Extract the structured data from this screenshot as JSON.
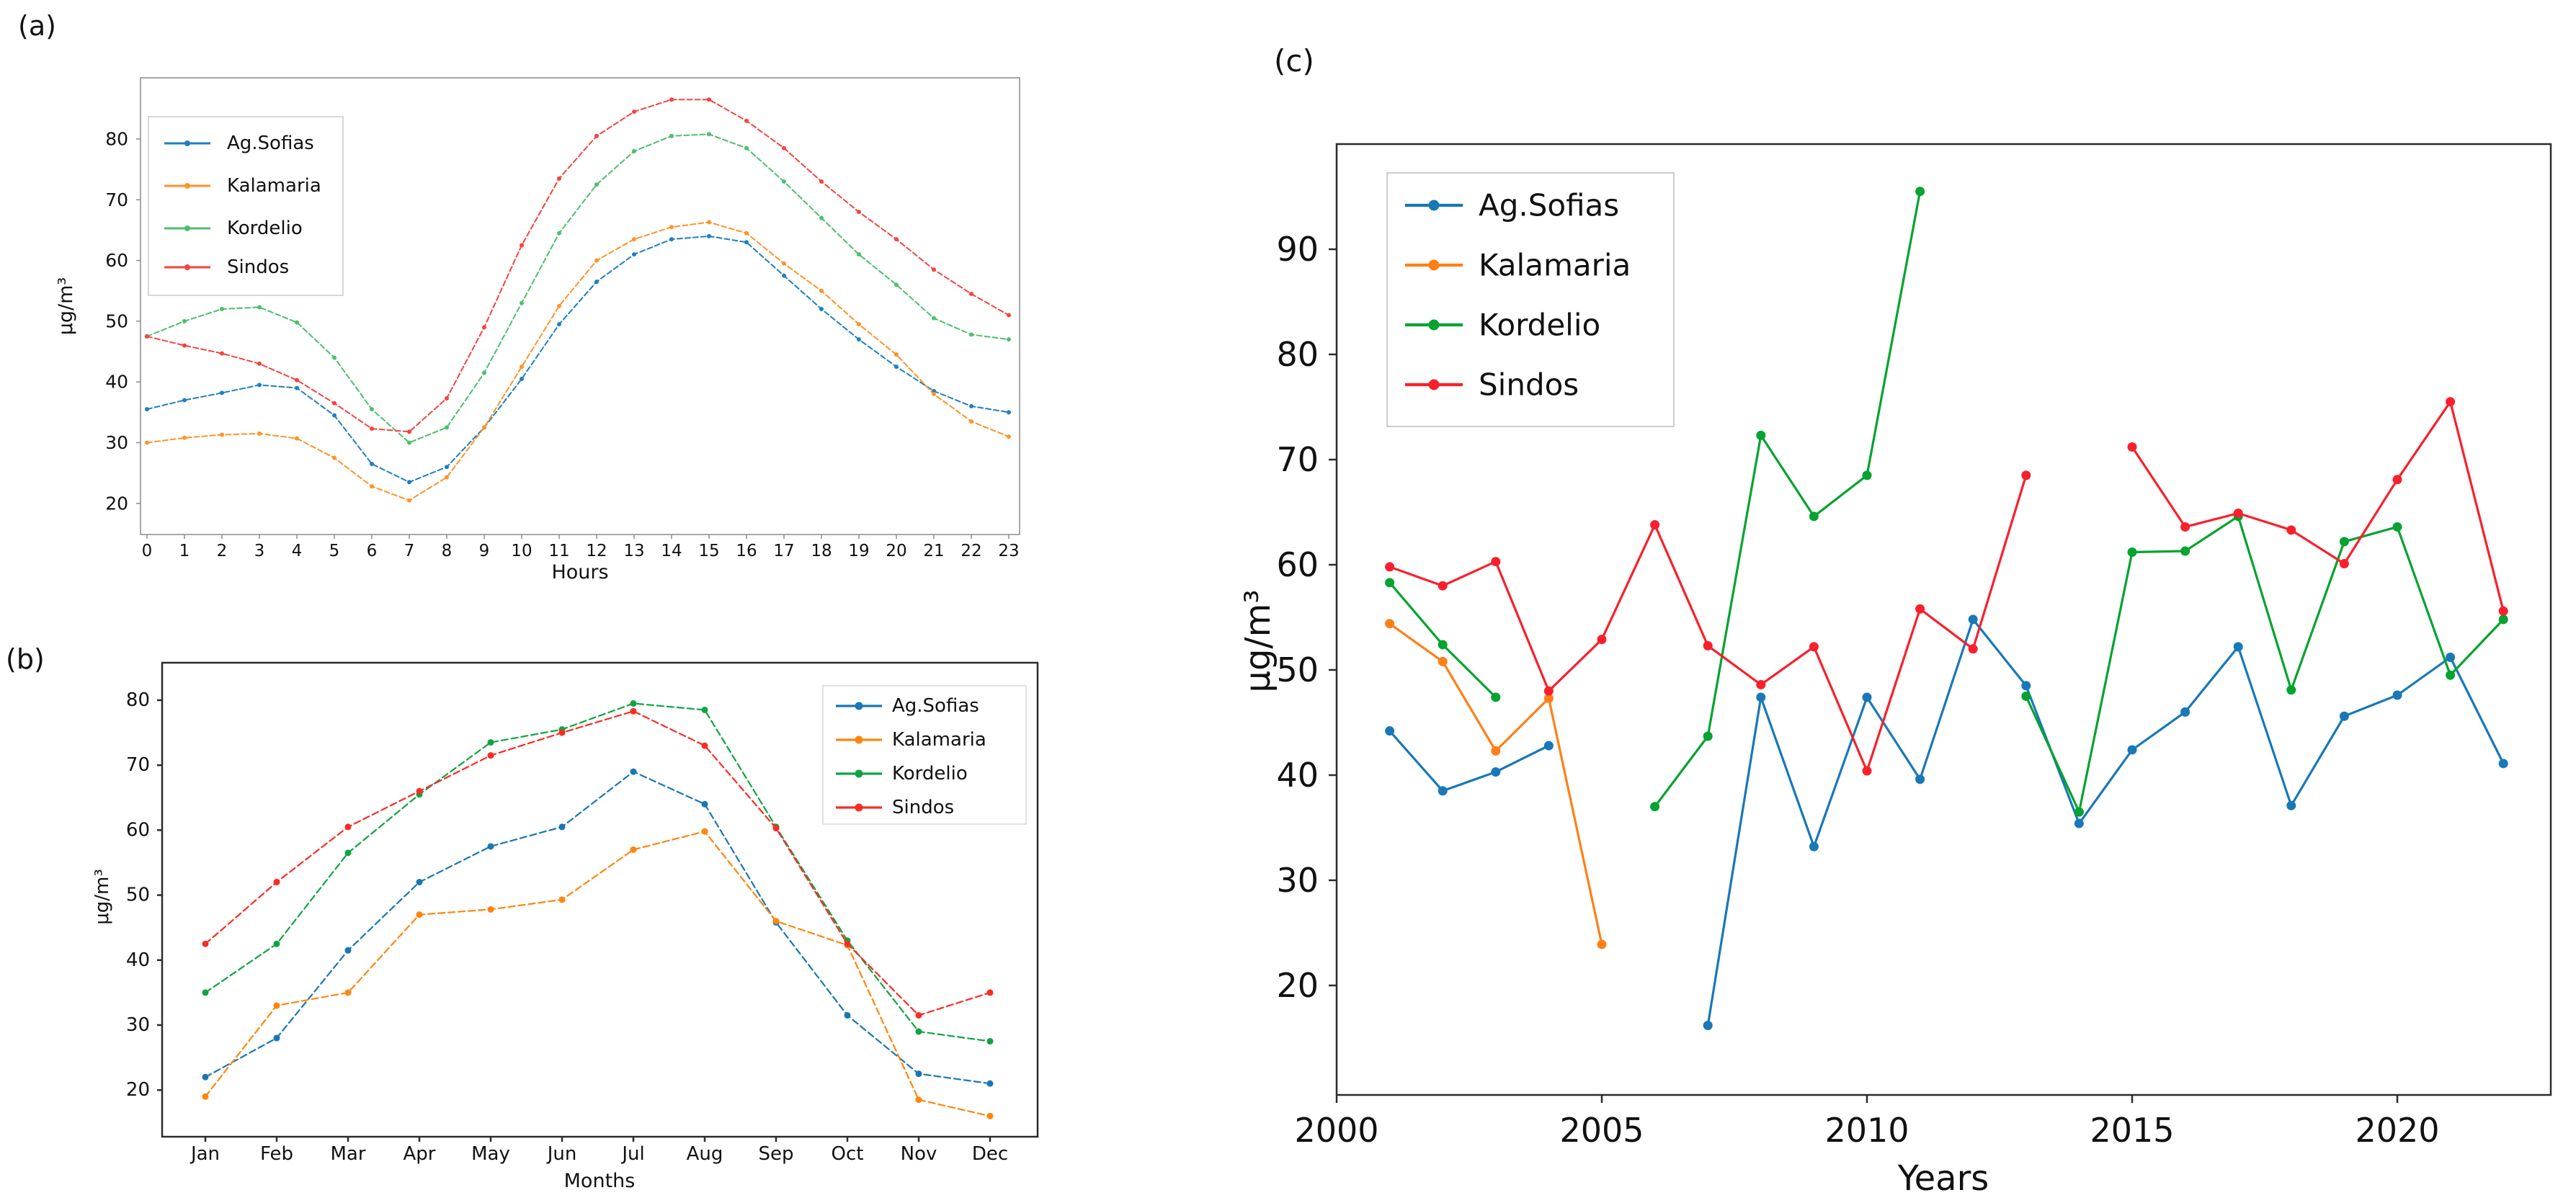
{
  "panels": {
    "a": "(a)",
    "b": "(b)",
    "c": "(c)"
  },
  "stations": [
    "Ag.Sofias",
    "Kalamaria",
    "Kordelio",
    "Sindos"
  ],
  "chart_data": [
    {
      "id": "a",
      "type": "line",
      "title": "",
      "xlabel": "Hours",
      "ylabel": "μg/m³",
      "legend_position": "top-left",
      "grid": false,
      "x": [
        0,
        1,
        2,
        3,
        4,
        5,
        6,
        7,
        8,
        9,
        10,
        11,
        12,
        13,
        14,
        15,
        16,
        17,
        18,
        19,
        20,
        21,
        22,
        23
      ],
      "yticks": [
        20,
        30,
        40,
        50,
        60,
        70,
        80
      ],
      "ylim": [
        14.5,
        90
      ],
      "series": [
        {
          "name": "Ag.Sofias",
          "color": "#1f7fc0",
          "values": [
            35.5,
            37,
            38.2,
            39.5,
            39,
            34.5,
            26.5,
            23.5,
            26,
            32.5,
            40.5,
            49.5,
            56.5,
            61,
            63.5,
            64,
            63,
            57.5,
            52,
            47,
            42.5,
            38.5,
            36,
            35
          ]
        },
        {
          "name": "Kalamaria",
          "color": "#ff9329",
          "values": [
            30,
            30.8,
            31.3,
            31.5,
            30.7,
            27.5,
            22.8,
            20.5,
            24.3,
            32.5,
            42.5,
            52.5,
            60,
            63.5,
            65.5,
            66.3,
            64.5,
            59.5,
            55,
            49.5,
            44.5,
            38,
            33.5,
            31
          ]
        },
        {
          "name": "Kordelio",
          "color": "#4dbf6c",
          "values": [
            47.5,
            50,
            52,
            52.3,
            49.8,
            44,
            35.5,
            30,
            32.5,
            41.5,
            53,
            64.5,
            72.5,
            78,
            80.5,
            80.8,
            78.5,
            73,
            67,
            61,
            56,
            50.5,
            47.8,
            47
          ]
        },
        {
          "name": "Sindos",
          "color": "#f5433e",
          "values": [
            47.5,
            46,
            44.7,
            43,
            40.3,
            36.5,
            32.3,
            31.8,
            37.3,
            49,
            62.5,
            73.5,
            80.5,
            84.5,
            86.5,
            86.5,
            83,
            78.5,
            73,
            68,
            63.5,
            58.5,
            54.5,
            51
          ]
        }
      ]
    },
    {
      "id": "b",
      "type": "line",
      "title": "",
      "xlabel": "Months",
      "ylabel": "μg/m³",
      "legend_position": "top-right",
      "grid": false,
      "categories": [
        "Jan",
        "Feb",
        "Mar",
        "Apr",
        "May",
        "Jun",
        "Jul",
        "Aug",
        "Sep",
        "Oct",
        "Nov",
        "Dec"
      ],
      "yticks": [
        20,
        30,
        40,
        50,
        60,
        70,
        80
      ],
      "ylim": [
        13,
        86
      ],
      "series": [
        {
          "name": "Ag.Sofias",
          "color": "#1877b4",
          "values": [
            22,
            28,
            41.5,
            52,
            57.5,
            60.5,
            69,
            64,
            45.8,
            31.5,
            22.5,
            21
          ]
        },
        {
          "name": "Kalamaria",
          "color": "#ff850e",
          "values": [
            19,
            33,
            35,
            47,
            47.8,
            49.3,
            57,
            59.8,
            46,
            42.3,
            18.5,
            16
          ]
        },
        {
          "name": "Kordelio",
          "color": "#0fa441",
          "values": [
            35,
            42.5,
            56.5,
            65.5,
            73.5,
            75.5,
            79.5,
            78.5,
            60.5,
            43,
            29,
            27.5
          ]
        },
        {
          "name": "Sindos",
          "color": "#f92c25",
          "values": [
            42.5,
            52,
            60.5,
            66,
            71.5,
            75,
            78.3,
            73,
            60.3,
            42.5,
            31.5,
            35
          ]
        }
      ]
    },
    {
      "id": "c",
      "type": "line",
      "title": "",
      "xlabel": "Years",
      "ylabel": "μg/m³",
      "legend_position": "top-left",
      "grid": false,
      "x": [
        2001,
        2002,
        2003,
        2004,
        2005,
        2006,
        2007,
        2008,
        2009,
        2010,
        2011,
        2012,
        2013,
        2014,
        2015,
        2016,
        2017,
        2018,
        2019,
        2020,
        2021,
        2022
      ],
      "xticks": [
        2000,
        2005,
        2010,
        2015,
        2020
      ],
      "yticks": [
        20,
        30,
        40,
        50,
        60,
        70,
        80,
        90
      ],
      "ylim": [
        10,
        100
      ],
      "series": [
        {
          "name": "Ag.Sofias",
          "color": "#1878b8",
          "values": [
            44.2,
            38.5,
            40.3,
            42.8,
            null,
            null,
            16.2,
            47.4,
            33.2,
            47.4,
            39.6,
            54.8,
            48.5,
            35.4,
            42.4,
            46,
            52.2,
            37.1,
            45.6,
            47.6,
            51.2,
            41.1
          ]
        },
        {
          "name": "Kalamaria",
          "color": "#ff7f17",
          "values": [
            54.4,
            50.8,
            42.3,
            47.3,
            23.9,
            null,
            null,
            null,
            null,
            null,
            null,
            null,
            null,
            null,
            null,
            null,
            null,
            null,
            null,
            null,
            null,
            null
          ]
        },
        {
          "name": "Kordelio",
          "color": "#05a32f",
          "values": [
            58.3,
            52.4,
            47.4,
            null,
            null,
            37,
            43.7,
            72.3,
            64.6,
            68.5,
            95.5,
            null,
            47.5,
            36.5,
            61.2,
            61.3,
            64.6,
            48.1,
            62.2,
            63.6,
            49.5,
            54.8
          ]
        },
        {
          "name": "Sindos",
          "color": "#f8202c",
          "values": [
            59.8,
            58,
            60.3,
            48,
            52.9,
            63.8,
            52.3,
            48.6,
            52.2,
            40.4,
            55.8,
            52,
            68.5,
            null,
            71.2,
            63.6,
            64.9,
            63.3,
            60.1,
            68.1,
            75.5,
            55.6
          ]
        }
      ]
    }
  ]
}
